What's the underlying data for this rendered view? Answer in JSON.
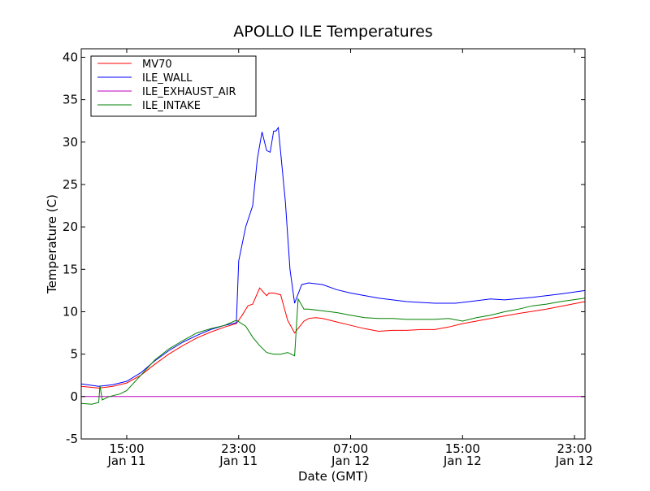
{
  "chart_data": {
    "type": "line",
    "title": "APOLLO ILE Temperatures",
    "xlabel": "Date (GMT)",
    "ylabel": "Temperature (C)",
    "xlim": [
      "2011-01-11T11:45",
      "2011-01-12T23:45"
    ],
    "ylim": [
      -5,
      41
    ],
    "yticks": [
      -5,
      0,
      5,
      10,
      15,
      20,
      25,
      30,
      35,
      40
    ],
    "xticks": [
      {
        "x": "2011-01-11T15:00",
        "time": "15:00",
        "date": "Jan 11"
      },
      {
        "x": "2011-01-11T23:00",
        "time": "23:00",
        "date": "Jan 11"
      },
      {
        "x": "2011-01-12T07:00",
        "time": "07:00",
        "date": "Jan 12"
      },
      {
        "x": "2011-01-12T15:00",
        "time": "15:00",
        "date": "Jan 12"
      },
      {
        "x": "2011-01-12T23:00",
        "time": "23:00",
        "date": "Jan 12"
      }
    ],
    "grid": false,
    "legend": "top-left",
    "series": [
      {
        "name": "MV70",
        "color": "#ff0000",
        "x": [
          "2011-01-11T11:45",
          "2011-01-11T13:00",
          "2011-01-11T14:00",
          "2011-01-11T15:00",
          "2011-01-11T16:00",
          "2011-01-11T17:00",
          "2011-01-11T18:00",
          "2011-01-11T19:00",
          "2011-01-11T20:00",
          "2011-01-11T21:00",
          "2011-01-11T22:00",
          "2011-01-11T22:50",
          "2011-01-11T23:15",
          "2011-01-11T23:40",
          "2011-01-12T00:00",
          "2011-01-12T00:30",
          "2011-01-12T01:00",
          "2011-01-12T01:10",
          "2011-01-12T01:30",
          "2011-01-12T02:00",
          "2011-01-12T02:30",
          "2011-01-12T03:00",
          "2011-01-12T03:40",
          "2011-01-12T04:00",
          "2011-01-12T04:30",
          "2011-01-12T05:00",
          "2011-01-12T06:00",
          "2011-01-12T07:00",
          "2011-01-12T08:00",
          "2011-01-12T09:00",
          "2011-01-12T10:00",
          "2011-01-12T11:00",
          "2011-01-12T12:00",
          "2011-01-12T13:00",
          "2011-01-12T14:00",
          "2011-01-12T15:00",
          "2011-01-12T17:00",
          "2011-01-12T19:00",
          "2011-01-12T21:00",
          "2011-01-12T23:45"
        ],
        "values": [
          1.2,
          1.0,
          1.2,
          1.6,
          2.5,
          3.8,
          5.0,
          6.0,
          6.9,
          7.6,
          8.2,
          8.6,
          9.6,
          10.7,
          10.9,
          12.8,
          11.9,
          12.2,
          12.2,
          12.0,
          9.0,
          7.5,
          8.9,
          9.2,
          9.3,
          9.2,
          8.8,
          8.4,
          8.0,
          7.7,
          7.8,
          7.8,
          7.9,
          7.9,
          8.2,
          8.6,
          9.2,
          9.8,
          10.3,
          11.2
        ]
      },
      {
        "name": "ILE_WALL",
        "color": "#0000ff",
        "x": [
          "2011-01-11T11:45",
          "2011-01-11T13:00",
          "2011-01-11T14:00",
          "2011-01-11T15:00",
          "2011-01-11T16:00",
          "2011-01-11T17:00",
          "2011-01-11T18:00",
          "2011-01-11T19:00",
          "2011-01-11T20:00",
          "2011-01-11T21:00",
          "2011-01-11T22:00",
          "2011-01-11T22:50",
          "2011-01-11T23:00",
          "2011-01-11T23:30",
          "2011-01-12T00:00",
          "2011-01-12T00:20",
          "2011-01-12T00:40",
          "2011-01-12T01:00",
          "2011-01-12T01:15",
          "2011-01-12T01:30",
          "2011-01-12T01:40",
          "2011-01-12T01:50",
          "2011-01-12T02:20",
          "2011-01-12T02:40",
          "2011-01-12T03:00",
          "2011-01-12T03:30",
          "2011-01-12T04:00",
          "2011-01-12T05:00",
          "2011-01-12T06:00",
          "2011-01-12T07:00",
          "2011-01-12T09:00",
          "2011-01-12T11:00",
          "2011-01-12T13:00",
          "2011-01-12T14:30",
          "2011-01-12T15:30",
          "2011-01-12T17:00",
          "2011-01-12T18:00",
          "2011-01-12T20:00",
          "2011-01-12T22:00",
          "2011-01-12T23:45"
        ],
        "values": [
          1.5,
          1.2,
          1.4,
          1.8,
          2.8,
          4.2,
          5.4,
          6.4,
          7.2,
          7.9,
          8.4,
          8.7,
          16.0,
          20.0,
          22.5,
          28.0,
          31.2,
          29.0,
          28.8,
          31.3,
          31.3,
          31.7,
          23.0,
          15.0,
          11.0,
          13.2,
          13.4,
          13.2,
          12.6,
          12.2,
          11.6,
          11.2,
          11.0,
          11.0,
          11.2,
          11.5,
          11.4,
          11.7,
          12.1,
          12.5
        ]
      },
      {
        "name": "ILE_EXHAUST_AIR",
        "color": "#bf00bf",
        "x": [
          "2011-01-11T11:45",
          "2011-01-12T23:45"
        ],
        "values": [
          0.0,
          0.0
        ]
      },
      {
        "name": "ILE_INTAKE",
        "color": "#008000",
        "x": [
          "2011-01-11T11:45",
          "2011-01-11T12:30",
          "2011-01-11T13:00",
          "2011-01-11T13:05",
          "2011-01-11T13:15",
          "2011-01-11T13:45",
          "2011-01-11T14:30",
          "2011-01-11T15:00",
          "2011-01-11T16:00",
          "2011-01-11T17:00",
          "2011-01-11T18:00",
          "2011-01-11T19:00",
          "2011-01-11T20:00",
          "2011-01-11T21:00",
          "2011-01-11T22:00",
          "2011-01-11T22:50",
          "2011-01-11T23:30",
          "2011-01-12T00:00",
          "2011-01-12T00:30",
          "2011-01-12T01:00",
          "2011-01-12T01:30",
          "2011-01-12T02:00",
          "2011-01-12T02:30",
          "2011-01-12T03:00",
          "2011-01-12T03:15",
          "2011-01-12T03:40",
          "2011-01-12T04:00",
          "2011-01-12T05:00",
          "2011-01-12T06:00",
          "2011-01-12T07:00",
          "2011-01-12T08:00",
          "2011-01-12T09:00",
          "2011-01-12T10:00",
          "2011-01-12T11:00",
          "2011-01-12T12:00",
          "2011-01-12T13:00",
          "2011-01-12T14:00",
          "2011-01-12T15:00",
          "2011-01-12T16:00",
          "2011-01-12T17:00",
          "2011-01-12T18:00",
          "2011-01-12T19:00",
          "2011-01-12T20:00",
          "2011-01-12T21:00",
          "2011-01-12T22:00",
          "2011-01-12T23:45"
        ],
        "values": [
          -0.8,
          -0.9,
          -0.7,
          1.3,
          -0.4,
          0.0,
          0.3,
          0.7,
          2.5,
          4.3,
          5.6,
          6.6,
          7.5,
          8.0,
          8.4,
          9.0,
          8.3,
          7.0,
          6.0,
          5.2,
          5.0,
          5.0,
          5.2,
          4.8,
          11.5,
          10.3,
          10.3,
          10.1,
          9.9,
          9.6,
          9.3,
          9.2,
          9.2,
          9.1,
          9.1,
          9.1,
          9.2,
          8.9,
          9.3,
          9.6,
          10.0,
          10.3,
          10.7,
          10.9,
          11.2,
          11.6
        ]
      }
    ]
  }
}
